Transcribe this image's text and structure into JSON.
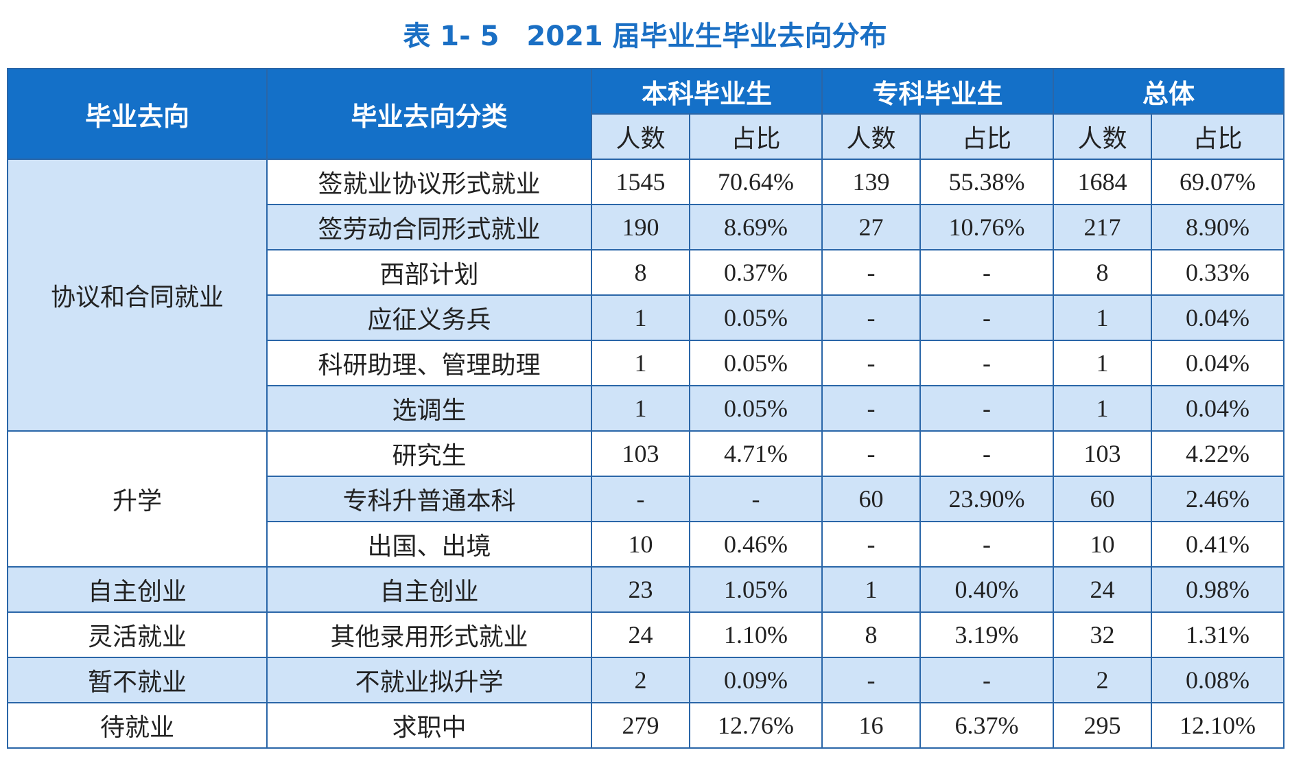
{
  "header": {
    "title": "表 1- 5　2021 届毕业生毕业去向分布"
  },
  "table": {
    "columns": {
      "destination": "毕业去向",
      "category": "毕业去向分类",
      "groups": [
        "本科毕业生",
        "专科毕业生",
        "总体"
      ],
      "sub": [
        "人数",
        "占比"
      ]
    },
    "groups": [
      {
        "name": "协议和合同就业",
        "rows": [
          {
            "category": "签就业协议形式就业",
            "cells": [
              "1545",
              "70.64%",
              "139",
              "55.38%",
              "1684",
              "69.07%"
            ]
          },
          {
            "category": "签劳动合同形式就业",
            "cells": [
              "190",
              "8.69%",
              "27",
              "10.76%",
              "217",
              "8.90%"
            ]
          },
          {
            "category": "西部计划",
            "cells": [
              "8",
              "0.37%",
              "-",
              "-",
              "8",
              "0.33%"
            ]
          },
          {
            "category": "应征义务兵",
            "cells": [
              "1",
              "0.05%",
              "-",
              "-",
              "1",
              "0.04%"
            ]
          },
          {
            "category": "科研助理、管理助理",
            "cells": [
              "1",
              "0.05%",
              "-",
              "-",
              "1",
              "0.04%"
            ]
          },
          {
            "category": "选调生",
            "cells": [
              "1",
              "0.05%",
              "-",
              "-",
              "1",
              "0.04%"
            ]
          }
        ]
      },
      {
        "name": "升学",
        "rows": [
          {
            "category": "研究生",
            "cells": [
              "103",
              "4.71%",
              "-",
              "-",
              "103",
              "4.22%"
            ]
          },
          {
            "category": "专科升普通本科",
            "cells": [
              "-",
              "-",
              "60",
              "23.90%",
              "60",
              "2.46%"
            ]
          },
          {
            "category": "出国、出境",
            "cells": [
              "10",
              "0.46%",
              "-",
              "-",
              "10",
              "0.41%"
            ]
          }
        ]
      },
      {
        "name": "自主创业",
        "rows": [
          {
            "category": "自主创业",
            "cells": [
              "23",
              "1.05%",
              "1",
              "0.40%",
              "24",
              "0.98%"
            ]
          }
        ]
      },
      {
        "name": "灵活就业",
        "rows": [
          {
            "category": "其他录用形式就业",
            "cells": [
              "24",
              "1.10%",
              "8",
              "3.19%",
              "32",
              "1.31%"
            ]
          }
        ]
      },
      {
        "name": "暂不就业",
        "rows": [
          {
            "category": "不就业拟升学",
            "cells": [
              "2",
              "0.09%",
              "-",
              "-",
              "2",
              "0.08%"
            ]
          }
        ]
      },
      {
        "name": "待就业",
        "rows": [
          {
            "category": "求职中",
            "cells": [
              "279",
              "12.76%",
              "16",
              "6.37%",
              "295",
              "12.10%"
            ]
          }
        ]
      }
    ]
  }
}
